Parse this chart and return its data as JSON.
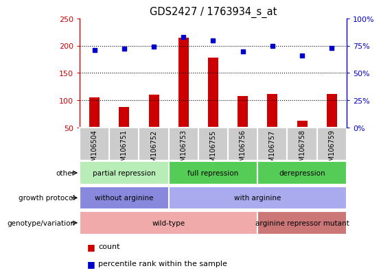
{
  "title": "GDS2427 / 1763934_s_at",
  "samples": [
    "GSM106504",
    "GSM106751",
    "GSM106752",
    "GSM106753",
    "GSM106755",
    "GSM106756",
    "GSM106757",
    "GSM106758",
    "GSM106759"
  ],
  "bar_values": [
    105,
    88,
    110,
    215,
    178,
    108,
    112,
    63,
    112
  ],
  "scatter_percentiles": [
    71,
    72,
    74,
    83,
    80,
    70,
    75,
    66,
    73
  ],
  "bar_color": "#cc0000",
  "scatter_color": "#0000cc",
  "ylim_left": [
    50,
    250
  ],
  "ylim_right": [
    0,
    100
  ],
  "yticks_left": [
    50,
    100,
    150,
    200,
    250
  ],
  "yticks_right": [
    0,
    25,
    50,
    75,
    100
  ],
  "grid_values": [
    100,
    150,
    200
  ],
  "annotation_rows": [
    {
      "label": "other",
      "segments": [
        {
          "text": "partial repression",
          "start": 0,
          "end": 3,
          "color": "#b8edb8"
        },
        {
          "text": "full repression",
          "start": 3,
          "end": 6,
          "color": "#55cc55"
        },
        {
          "text": "derepression",
          "start": 6,
          "end": 9,
          "color": "#55cc55"
        }
      ]
    },
    {
      "label": "growth protocol",
      "segments": [
        {
          "text": "without arginine",
          "start": 0,
          "end": 3,
          "color": "#8888dd"
        },
        {
          "text": "with arginine",
          "start": 3,
          "end": 9,
          "color": "#aaaaee"
        }
      ]
    },
    {
      "label": "genotype/variation",
      "segments": [
        {
          "text": "wild-type",
          "start": 0,
          "end": 6,
          "color": "#f0aaaa"
        },
        {
          "text": "arginine repressor mutant",
          "start": 6,
          "end": 9,
          "color": "#cc7777"
        }
      ]
    }
  ],
  "legend_items": [
    {
      "label": "count",
      "color": "#cc0000"
    },
    {
      "label": "percentile rank within the sample",
      "color": "#0000cc"
    }
  ],
  "sample_bg_color": "#cccccc",
  "plot_bg_color": "#ffffff"
}
